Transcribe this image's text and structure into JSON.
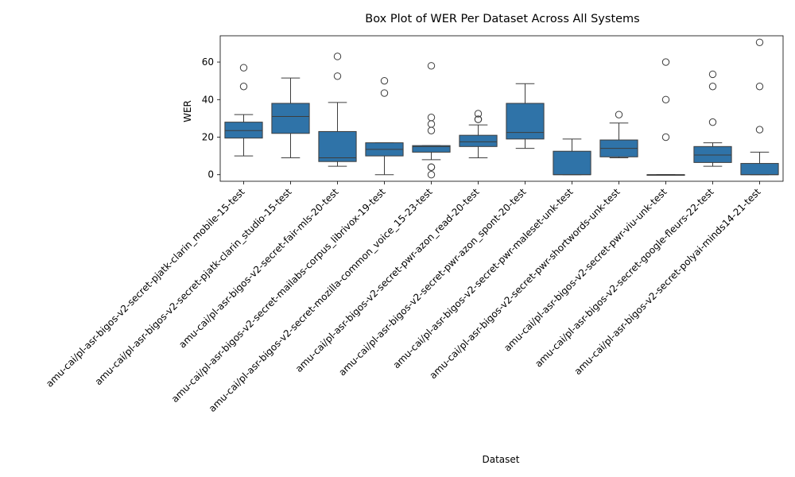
{
  "chart_data": {
    "type": "box",
    "title": "Box Plot of WER Per Dataset Across All Systems",
    "xlabel": "Dataset",
    "ylabel": "WER",
    "ylim": [
      -3.5,
      74
    ],
    "yticks": [
      0,
      20,
      40,
      60
    ],
    "box_color": "#2f73a8",
    "categories": [
      "amu-cai/pl-asr-bigos-v2-secret-pjatk-clarin_mobile-15-test",
      "amu-cai/pl-asr-bigos-v2-secret-pjatk-clarin_studio-15-test",
      "amu-cai/pl-asr-bigos-v2-secret-fair-mls-20-test",
      "amu-cai/pl-asr-bigos-v2-secret-mailabs-corpus_librivox-19-test",
      "amu-cai/pl-asr-bigos-v2-secret-mozilla-common_voice_15-23-test",
      "amu-cai/pl-asr-bigos-v2-secret-pwr-azon_read-20-test",
      "amu-cai/pl-asr-bigos-v2-secret-pwr-azon_spont-20-test",
      "amu-cai/pl-asr-bigos-v2-secret-pwr-maleset-unk-test",
      "amu-cai/pl-asr-bigos-v2-secret-pwr-shortwords-unk-test",
      "amu-cai/pl-asr-bigos-v2-secret-pwr-viu-unk-test",
      "amu-cai/pl-asr-bigos-v2-secret-google-fleurs-22-test",
      "amu-cai/pl-asr-bigos-v2-secret-polyai-minds14-21-test"
    ],
    "boxes": [
      {
        "whislo": 10,
        "q1": 19.5,
        "med": 23.5,
        "q3": 28,
        "whishi": 32,
        "fliers": [
          47,
          57
        ]
      },
      {
        "whislo": 9,
        "q1": 22,
        "med": 31,
        "q3": 38,
        "whishi": 51.5,
        "fliers": []
      },
      {
        "whislo": 4.5,
        "q1": 7,
        "med": 9,
        "q3": 23,
        "whishi": 38.5,
        "fliers": [
          52.5,
          63
        ]
      },
      {
        "whislo": 0,
        "q1": 10,
        "med": 13.5,
        "q3": 17,
        "whishi": 17,
        "fliers": [
          43.5,
          50
        ]
      },
      {
        "whislo": 8,
        "q1": 12,
        "med": 15,
        "q3": 15.5,
        "whishi": 15.5,
        "fliers": [
          0,
          4,
          4,
          23.5,
          27,
          30.5,
          58
        ]
      },
      {
        "whislo": 9,
        "q1": 15,
        "med": 17.5,
        "q3": 21,
        "whishi": 26.5,
        "fliers": [
          29.5,
          29.5,
          32.5
        ]
      },
      {
        "whislo": 14,
        "q1": 19,
        "med": 22.5,
        "q3": 38,
        "whishi": 48.5,
        "fliers": []
      },
      {
        "whislo": 0,
        "q1": 0,
        "med": 0,
        "q3": 12.5,
        "whishi": 19,
        "fliers": []
      },
      {
        "whislo": 9,
        "q1": 9.5,
        "med": 14,
        "q3": 18.5,
        "whishi": 27.5,
        "fliers": [
          32
        ]
      },
      {
        "whislo": 0,
        "q1": 0,
        "med": 0,
        "q3": 0,
        "whishi": 0,
        "fliers": [
          20,
          40,
          60
        ]
      },
      {
        "whislo": 4.5,
        "q1": 6.5,
        "med": 10.5,
        "q3": 15,
        "whishi": 17,
        "fliers": [
          28,
          47,
          53.5
        ]
      },
      {
        "whislo": 0,
        "q1": 0,
        "med": 0,
        "q3": 6,
        "whishi": 12,
        "fliers": [
          24,
          47,
          70.5
        ]
      }
    ]
  }
}
